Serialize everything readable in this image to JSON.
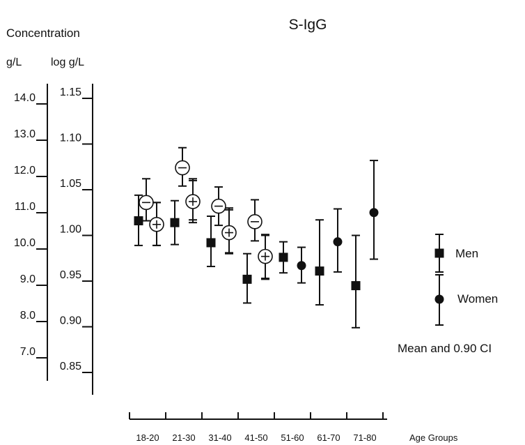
{
  "chart_data": {
    "type": "scatter",
    "title": "S-IgG",
    "axis_heading": "Concentration",
    "left_axis_unit": "g/L",
    "right_axis_unit": "log g/L",
    "left_ticks": [
      "14.0",
      "13.0",
      "12.0",
      "11.0",
      "10.0",
      "9.0",
      "8.0",
      "7.0"
    ],
    "log_ticks": [
      "1.15",
      "1.10",
      "1.05",
      "1.00",
      "0.95",
      "0.90",
      "0.85"
    ],
    "log_tick_values": [
      1.15,
      1.1,
      1.05,
      1.0,
      0.95,
      0.9,
      0.85
    ],
    "ylim_log": [
      0.85,
      1.15
    ],
    "categories": [
      "18-20",
      "21-30",
      "31-40",
      "41-50",
      "51-60",
      "61-70",
      "71-80"
    ],
    "xlabel": "Age Groups",
    "series": [
      {
        "name": "Men",
        "marker": "square",
        "categories": [
          "18-20",
          "21-30",
          "31-40",
          "41-50",
          "51-60",
          "61-70",
          "71-80"
        ],
        "mean": [
          1.016,
          1.014,
          0.992,
          0.952,
          0.976,
          0.961,
          0.945
        ],
        "lower": [
          0.989,
          0.99,
          0.966,
          0.926,
          0.959,
          0.924,
          0.899
        ],
        "upper": [
          1.044,
          1.038,
          1.021,
          0.98,
          0.993,
          1.017,
          1.0
        ]
      },
      {
        "name": "Women",
        "marker": "circle",
        "categories": [
          "18-20",
          "21-30",
          "31-40",
          "41-50",
          "51-60",
          "61-70",
          "71-80"
        ],
        "mean": [
          1.012,
          1.036,
          1.003,
          0.978,
          0.967,
          0.993,
          1.025
        ],
        "lower": [
          0.989,
          1.017,
          0.981,
          0.953,
          0.948,
          0.96,
          0.974
        ],
        "upper": [
          1.036,
          1.062,
          1.03,
          1.001,
          0.987,
          1.029,
          1.082
        ]
      }
    ],
    "subgroups": [
      {
        "category": "18-20",
        "symbol": "−",
        "mean": 1.036,
        "lower": 1.016,
        "upper": 1.062
      },
      {
        "category": "18-20",
        "symbol": "+",
        "mean": 1.012,
        "lower": 0.989,
        "upper": 1.036
      },
      {
        "category": "21-30",
        "symbol": "−",
        "mean": 1.074,
        "lower": 1.054,
        "upper": 1.096
      },
      {
        "category": "21-30",
        "symbol": "+",
        "mean": 1.037,
        "lower": 1.014,
        "upper": 1.06
      },
      {
        "category": "31-40",
        "symbol": "−",
        "mean": 1.032,
        "lower": 1.011,
        "upper": 1.053
      },
      {
        "category": "31-40",
        "symbol": "+",
        "mean": 1.003,
        "lower": 0.98,
        "upper": 1.028
      },
      {
        "category": "41-50",
        "symbol": "−",
        "mean": 1.015,
        "lower": 0.994,
        "upper": 1.039
      },
      {
        "category": "41-50",
        "symbol": "+",
        "mean": 0.977,
        "lower": 0.952,
        "upper": 1.0
      }
    ],
    "legend": {
      "placement": "right",
      "men_label": "Men",
      "women_label": "Women",
      "note": "Mean and 0.90 CI"
    }
  }
}
